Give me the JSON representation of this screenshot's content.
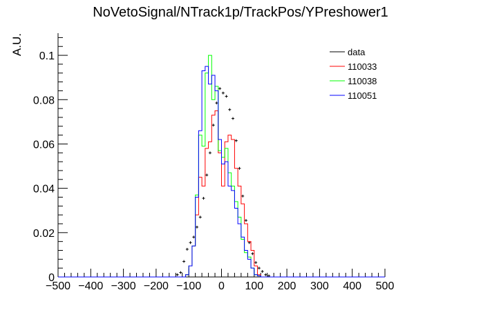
{
  "chart_data": {
    "type": "line",
    "title": "NoVetoSignal/NTrack1p/TrackPos/YPreshower1",
    "xlabel": "",
    "ylabel": "A.U.",
    "xlim": [
      -500,
      500
    ],
    "ylim": [
      0,
      0.11
    ],
    "x_ticks": [
      "−500",
      "−400",
      "−300",
      "−200",
      "−100",
      "0",
      "100",
      "200",
      "300",
      "400",
      "500"
    ],
    "y_ticks": [
      "0",
      "0.02",
      "0.04",
      "0.06",
      "0.08",
      "0.1"
    ],
    "legend_position": "top-right",
    "bin_edges": [
      -140,
      -130,
      -120,
      -110,
      -100,
      -90,
      -80,
      -70,
      -60,
      -50,
      -40,
      -30,
      -20,
      -10,
      0,
      10,
      20,
      30,
      40,
      50,
      60,
      70,
      80,
      90,
      100,
      110,
      120,
      130,
      140,
      150
    ],
    "series": [
      {
        "name": "data",
        "style": "points",
        "color": "#000000",
        "x": [
          -135,
          -125,
          -115,
          -105,
          -95,
          -85,
          -75,
          -65,
          -55,
          -45,
          -35,
          -25,
          -15,
          -5,
          5,
          15,
          25,
          35,
          45,
          55,
          65,
          75,
          85,
          95,
          105,
          115,
          125,
          135,
          145
        ],
        "values": [
          0.001,
          0.002,
          0.007,
          0.0125,
          0.0155,
          0.018,
          0.0225,
          0.027,
          0.0355,
          0.046,
          0.056,
          0.0685,
          0.0785,
          0.085,
          0.083,
          0.0815,
          0.0755,
          0.0715,
          0.0615,
          0.049,
          0.0365,
          0.0255,
          0.0155,
          0.0105,
          0.0065,
          0.004,
          0.0025,
          0.001,
          0.0005
        ]
      },
      {
        "name": "110033",
        "style": "step",
        "color": "#ff0000",
        "values": [
          0,
          0,
          0,
          0.001,
          0.005,
          0.014,
          0.028,
          0.045,
          0.041,
          0.058,
          0.061,
          0.073,
          0.075,
          0.056,
          0.041,
          0.061,
          0.064,
          0.062,
          0.049,
          0.041,
          0.033,
          0.024,
          0.016,
          0.012,
          0.005,
          0.001,
          0,
          0,
          0
        ]
      },
      {
        "name": "110038",
        "style": "step",
        "color": "#00ff00",
        "values": [
          0,
          0,
          0,
          0.001,
          0.005,
          0.014,
          0.037,
          0.064,
          0.059,
          0.092,
          0.1,
          0.08,
          0.086,
          0.057,
          0.054,
          0.058,
          0.047,
          0.041,
          0.034,
          0.027,
          0.017,
          0.011,
          0.009,
          0.004,
          0.001,
          0.0005,
          0,
          0,
          0
        ]
      },
      {
        "name": "110051",
        "style": "step",
        "color": "#0000ff",
        "values": [
          0,
          0,
          0,
          0.001,
          0.005,
          0.014,
          0.036,
          0.066,
          0.093,
          0.095,
          0.087,
          0.091,
          0.084,
          0.062,
          0.051,
          0.052,
          0.041,
          0.039,
          0.031,
          0.024,
          0.018,
          0.012,
          0.008,
          0.004,
          0.001,
          0.0005,
          0,
          0,
          0
        ]
      }
    ]
  }
}
